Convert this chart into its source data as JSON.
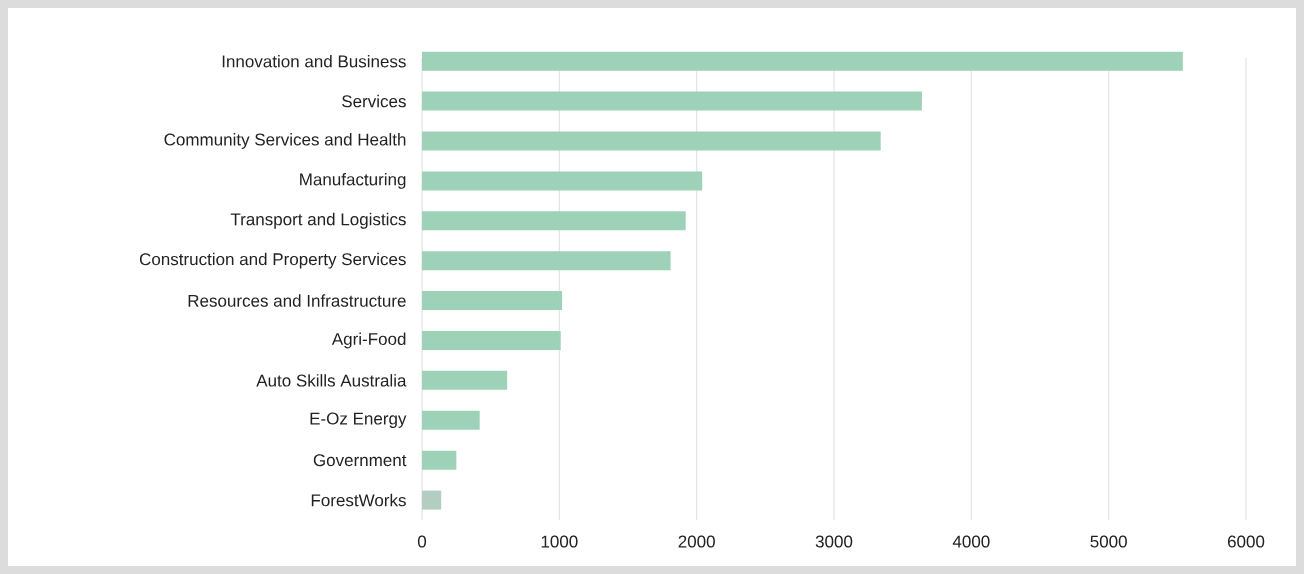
{
  "chart_data": {
    "type": "bar",
    "orientation": "horizontal",
    "categories": [
      "Innovation and Business",
      "Services",
      "Community Services and Health",
      "Manufacturing",
      "Transport and Logistics",
      "Construction and Property Services",
      "Resources and Infrastructure",
      "Agri-Food",
      "Auto Skills Australia",
      "E-Oz Energy",
      "Government",
      "ForestWorks"
    ],
    "values": [
      5540,
      3640,
      3340,
      2040,
      1920,
      1810,
      1020,
      1010,
      620,
      420,
      250,
      140
    ],
    "colors": [
      "#9dd2b8",
      "#9dd2b8",
      "#9dd2b8",
      "#9dd2b8",
      "#9dd2b8",
      "#9dd2b8",
      "#9dd2b8",
      "#9dd2b8",
      "#9dd2b8",
      "#9dd2b8",
      "#9dd2b8",
      "#b4cdc1"
    ],
    "xlim": [
      0,
      6000
    ],
    "xticks": [
      0,
      1000,
      2000,
      3000,
      4000,
      5000,
      6000
    ],
    "grid": "x"
  }
}
